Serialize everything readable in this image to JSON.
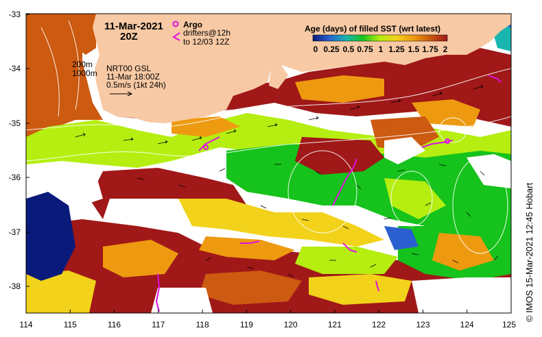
{
  "map": {
    "date_line1": "11-Mar-2021",
    "date_line2": "20Z",
    "argo_label": "Argo",
    "drifter_line1": "drifters@12h",
    "drifter_line2": "to 12/03 12Z",
    "contour_200": "200m",
    "contour_1000": "1000m",
    "product_line1": "NRT00 GSL",
    "product_line2": "11-Mar 18:00Z",
    "scale_label": "0.5m/s (1kt 24h)",
    "land_color": "#F7C9A4",
    "argo_color": "#E010E0",
    "drifter_color": "#E010E0"
  },
  "legend": {
    "title": "Age (days) of filled SST (wrt latest)",
    "ticks": [
      "0",
      "0.25",
      "0.5",
      "0.75",
      "1",
      "1.25",
      "1.5",
      "1.75",
      "2"
    ],
    "colors": [
      "#0a1a7a",
      "#2b5fd0",
      "#19b6b0",
      "#16c21c",
      "#b5ee10",
      "#f2d21a",
      "#ee9a10",
      "#cc5a10",
      "#a01818"
    ]
  },
  "axes": {
    "x_ticks": [
      "114",
      "115",
      "116",
      "117",
      "118",
      "119",
      "120",
      "121",
      "122",
      "123",
      "124",
      "125"
    ],
    "y_ticks": [
      "-33",
      "-34",
      "-35",
      "-36",
      "-37",
      "-38"
    ],
    "lon_range": [
      114,
      125
    ],
    "lat_range": [
      -38.5,
      -33
    ]
  },
  "credit": "© IMOS 15-Mar-2021 12:45 Hobart"
}
